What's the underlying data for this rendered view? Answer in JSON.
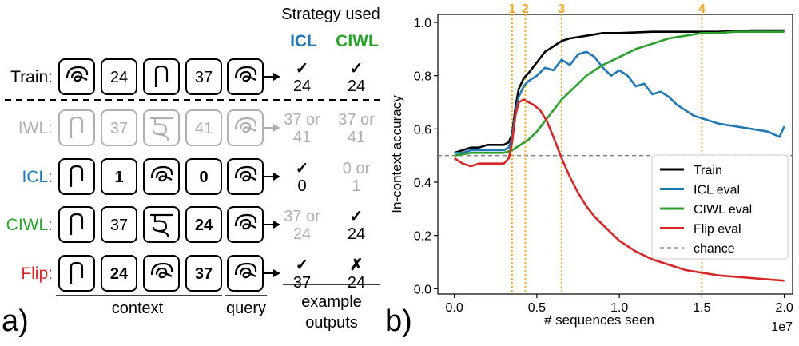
{
  "panel_a": {
    "label": "a)",
    "header": {
      "strategy": "Strategy used",
      "icl": "ICL",
      "ciwl": "CIWL"
    },
    "colors": {
      "icl": "#1f77b4",
      "ciwl": "#2ca02c",
      "flip": "#d62728",
      "iwl": "#b0b0b0",
      "text": "#000000"
    },
    "rows": [
      {
        "label": "Train:",
        "tone": "text",
        "cards": [
          {
            "glyph": "swirl"
          },
          {
            "text": "24"
          },
          {
            "glyph": "hook"
          },
          {
            "text": "37"
          }
        ],
        "query": "swirl",
        "faded": false,
        "icl_out": {
          "mark": "✓",
          "value": "24"
        },
        "ciwl_out": {
          "mark": "✓",
          "value": "24"
        }
      },
      {
        "label": "IWL:",
        "tone": "iwl",
        "cards": [
          {
            "glyph": "hook"
          },
          {
            "text": "37"
          },
          {
            "glyph": "hindi"
          },
          {
            "text": "41"
          }
        ],
        "query": "swirl",
        "faded": true,
        "icl_out": {
          "line1": "37 or",
          "line2": "41"
        },
        "ciwl_out": {
          "line1": "37 or",
          "line2": "41"
        }
      },
      {
        "label": "ICL:",
        "tone": "icl",
        "cards": [
          {
            "glyph": "hook"
          },
          {
            "text": "1",
            "bold": true
          },
          {
            "glyph": "swirl"
          },
          {
            "text": "0",
            "bold": true
          }
        ],
        "query": "swirl",
        "faded": false,
        "icl_out": {
          "mark": "✓",
          "value": "0"
        },
        "ciwl_out": {
          "line1": "0 or",
          "line2": "1",
          "grey": true
        }
      },
      {
        "label": "CIWL:",
        "tone": "ciwl",
        "cards": [
          {
            "glyph": "hook"
          },
          {
            "text": "37"
          },
          {
            "glyph": "hindi"
          },
          {
            "text": "24",
            "bold": true
          }
        ],
        "query": "swirl",
        "faded": false,
        "icl_out": {
          "line1": "37 or",
          "line2": "24",
          "grey": true
        },
        "ciwl_out": {
          "mark": "✓",
          "value": "24"
        }
      },
      {
        "label": "Flip:",
        "tone": "flip",
        "cards": [
          {
            "glyph": "hook"
          },
          {
            "text": "24",
            "bold": true
          },
          {
            "glyph": "swirl"
          },
          {
            "text": "37",
            "bold": true
          }
        ],
        "query": "swirl",
        "faded": false,
        "icl_out": {
          "mark": "✓",
          "value": "37"
        },
        "ciwl_out": {
          "mark": "✗",
          "value": "24"
        }
      }
    ],
    "footer": {
      "context": "context",
      "query": "query",
      "outputs_1": "example",
      "outputs_2": "outputs"
    }
  },
  "chart_data": {
    "type": "line",
    "panel_label": "b)",
    "xlabel": "# sequences seen",
    "ylabel": "In-context accuracy",
    "x_multiplier": "1e7",
    "xlim": [
      -0.1,
      2.05
    ],
    "ylim": [
      -0.02,
      1.03
    ],
    "xticks": [
      0.0,
      0.5,
      1.0,
      1.5,
      2.0
    ],
    "xtick_labels": [
      "0.0",
      "0.5",
      "1.0",
      "1.5",
      "2.0"
    ],
    "yticks": [
      0.0,
      0.2,
      0.4,
      0.6,
      0.8,
      1.0
    ],
    "ytick_labels": [
      "0.0",
      "0.2",
      "0.4",
      "0.6",
      "0.8",
      "1.0"
    ],
    "grid": false,
    "legend_position": "lower-right",
    "chance": {
      "label": "chance",
      "y": 0.5,
      "color": "#7f7f7f"
    },
    "vlines": [
      {
        "label": "1",
        "x": 0.35
      },
      {
        "label": "2",
        "x": 0.43
      },
      {
        "label": "3",
        "x": 0.65
      },
      {
        "label": "4",
        "x": 1.5
      }
    ],
    "vline_color": "#f5a623",
    "series": [
      {
        "name": "Train",
        "color": "#000000",
        "x": [
          0.0,
          0.05,
          0.1,
          0.15,
          0.2,
          0.25,
          0.3,
          0.33,
          0.35,
          0.37,
          0.39,
          0.42,
          0.45,
          0.5,
          0.55,
          0.6,
          0.65,
          0.7,
          0.8,
          0.9,
          1.0,
          1.2,
          1.4,
          1.6,
          1.8,
          2.0
        ],
        "y": [
          0.51,
          0.52,
          0.53,
          0.53,
          0.54,
          0.54,
          0.54,
          0.55,
          0.58,
          0.68,
          0.75,
          0.79,
          0.81,
          0.85,
          0.89,
          0.91,
          0.93,
          0.94,
          0.95,
          0.96,
          0.96,
          0.965,
          0.965,
          0.965,
          0.97,
          0.97
        ]
      },
      {
        "name": "ICL eval",
        "color": "#1f77b4",
        "x": [
          0.0,
          0.05,
          0.1,
          0.15,
          0.2,
          0.25,
          0.3,
          0.33,
          0.35,
          0.37,
          0.39,
          0.42,
          0.45,
          0.5,
          0.55,
          0.6,
          0.65,
          0.7,
          0.75,
          0.8,
          0.85,
          0.9,
          0.95,
          1.0,
          1.05,
          1.1,
          1.15,
          1.2,
          1.25,
          1.3,
          1.35,
          1.4,
          1.45,
          1.5,
          1.6,
          1.7,
          1.8,
          1.9,
          1.97,
          2.0
        ],
        "y": [
          0.51,
          0.51,
          0.52,
          0.52,
          0.52,
          0.52,
          0.52,
          0.53,
          0.57,
          0.66,
          0.72,
          0.76,
          0.78,
          0.8,
          0.83,
          0.82,
          0.86,
          0.84,
          0.88,
          0.89,
          0.87,
          0.83,
          0.8,
          0.82,
          0.8,
          0.76,
          0.77,
          0.73,
          0.74,
          0.72,
          0.69,
          0.67,
          0.65,
          0.64,
          0.62,
          0.61,
          0.6,
          0.59,
          0.57,
          0.61
        ]
      },
      {
        "name": "CIWL eval",
        "color": "#2ca02c",
        "x": [
          0.0,
          0.1,
          0.2,
          0.3,
          0.35,
          0.4,
          0.45,
          0.5,
          0.55,
          0.6,
          0.65,
          0.7,
          0.8,
          0.9,
          1.0,
          1.1,
          1.2,
          1.3,
          1.4,
          1.5,
          1.6,
          1.7,
          1.8,
          1.9,
          2.0
        ],
        "y": [
          0.5,
          0.51,
          0.51,
          0.51,
          0.52,
          0.54,
          0.56,
          0.59,
          0.63,
          0.67,
          0.71,
          0.74,
          0.8,
          0.84,
          0.87,
          0.9,
          0.92,
          0.94,
          0.95,
          0.96,
          0.96,
          0.965,
          0.965,
          0.965,
          0.965
        ]
      },
      {
        "name": "Flip eval",
        "color": "#d62728",
        "x": [
          0.0,
          0.05,
          0.1,
          0.15,
          0.2,
          0.25,
          0.3,
          0.33,
          0.35,
          0.37,
          0.39,
          0.42,
          0.45,
          0.48,
          0.52,
          0.56,
          0.6,
          0.65,
          0.7,
          0.75,
          0.8,
          0.85,
          0.9,
          0.95,
          1.0,
          1.1,
          1.2,
          1.3,
          1.4,
          1.5,
          1.6,
          1.7,
          1.8,
          1.9,
          2.0
        ],
        "y": [
          0.49,
          0.47,
          0.46,
          0.47,
          0.47,
          0.47,
          0.47,
          0.49,
          0.55,
          0.65,
          0.7,
          0.71,
          0.7,
          0.69,
          0.67,
          0.63,
          0.57,
          0.49,
          0.42,
          0.36,
          0.31,
          0.27,
          0.24,
          0.21,
          0.18,
          0.14,
          0.11,
          0.09,
          0.07,
          0.06,
          0.05,
          0.045,
          0.04,
          0.035,
          0.03
        ]
      }
    ]
  }
}
